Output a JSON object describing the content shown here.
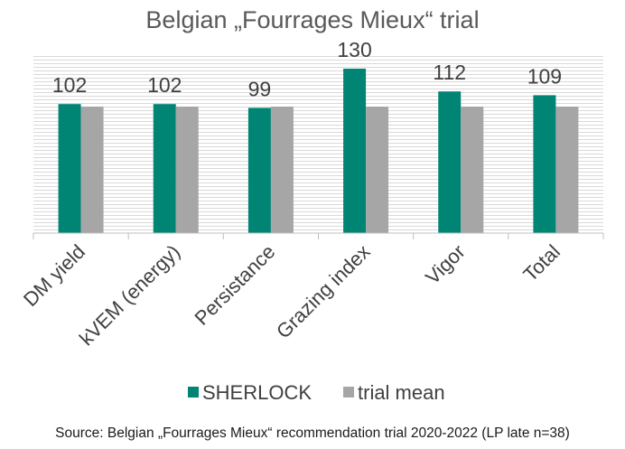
{
  "chart_data": {
    "type": "bar",
    "title": "Belgian „Fourrages Mieux“ trial",
    "categories": [
      "DM yield",
      "kVEM (energy)",
      "Persistance",
      "Grazing index",
      "Vigor",
      "Total"
    ],
    "series": [
      {
        "name": "SHERLOCK",
        "values": [
          102,
          102,
          99,
          130,
          112,
          109
        ],
        "color": "#008575"
      },
      {
        "name": "trial mean",
        "values": [
          100,
          100,
          100,
          100,
          100,
          100
        ],
        "color": "#a6a6a6"
      }
    ],
    "data_labels_series": "SHERLOCK",
    "ylim": [
      0,
      140
    ],
    "grid": "horizontal",
    "legend": "bottom",
    "xlabel": "",
    "ylabel": "",
    "source": "Source: Belgian „Fourrages Mieux“ recommendation trial 2020-2022 (LP late n=38)"
  }
}
